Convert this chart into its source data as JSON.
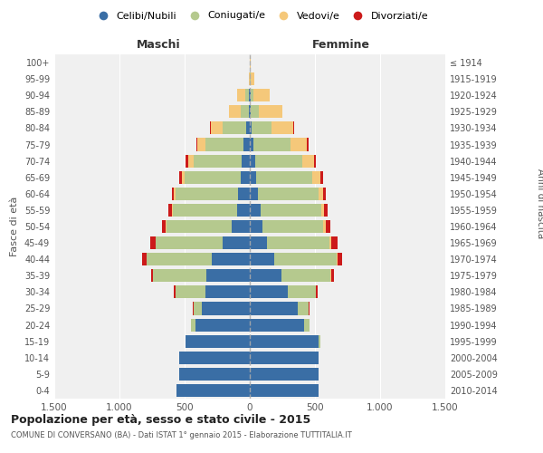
{
  "age_groups": [
    "0-4",
    "5-9",
    "10-14",
    "15-19",
    "20-24",
    "25-29",
    "30-34",
    "35-39",
    "40-44",
    "45-49",
    "50-54",
    "55-59",
    "60-64",
    "65-69",
    "70-74",
    "75-79",
    "80-84",
    "85-89",
    "90-94",
    "95-99",
    "100+"
  ],
  "birth_years": [
    "2010-2014",
    "2005-2009",
    "2000-2004",
    "1995-1999",
    "1990-1994",
    "1985-1989",
    "1980-1984",
    "1975-1979",
    "1970-1974",
    "1965-1969",
    "1960-1964",
    "1955-1959",
    "1950-1954",
    "1945-1949",
    "1940-1944",
    "1935-1939",
    "1930-1934",
    "1925-1929",
    "1920-1924",
    "1915-1919",
    "≤ 1914"
  ],
  "colors": {
    "celibi": "#3a6ea5",
    "coniugati": "#b5c98e",
    "vedovi": "#f5c87a",
    "divorziati": "#cc1a1a"
  },
  "maschi": {
    "celibi": [
      560,
      540,
      540,
      490,
      420,
      370,
      340,
      330,
      290,
      210,
      140,
      100,
      90,
      70,
      60,
      50,
      30,
      10,
      5,
      3,
      2
    ],
    "coniugati": [
      0,
      0,
      0,
      5,
      30,
      60,
      230,
      410,
      500,
      510,
      500,
      490,
      480,
      430,
      370,
      290,
      180,
      60,
      30,
      0,
      0
    ],
    "vedovi": [
      0,
      0,
      0,
      0,
      0,
      0,
      0,
      0,
      5,
      5,
      5,
      5,
      10,
      20,
      40,
      60,
      90,
      90,
      60,
      5,
      0
    ],
    "divorziati": [
      0,
      0,
      0,
      0,
      0,
      5,
      10,
      20,
      30,
      40,
      30,
      30,
      20,
      20,
      20,
      10,
      5,
      0,
      0,
      0,
      0
    ]
  },
  "femmine": {
    "nubili": [
      530,
      530,
      530,
      530,
      420,
      370,
      290,
      240,
      190,
      130,
      100,
      80,
      60,
      50,
      40,
      30,
      15,
      8,
      5,
      3,
      2
    ],
    "coniugate": [
      0,
      0,
      0,
      10,
      40,
      80,
      220,
      380,
      480,
      480,
      460,
      470,
      470,
      430,
      360,
      280,
      150,
      60,
      20,
      5,
      0
    ],
    "vedove": [
      0,
      0,
      0,
      0,
      0,
      0,
      0,
      5,
      5,
      15,
      20,
      20,
      30,
      60,
      90,
      130,
      170,
      180,
      130,
      30,
      5
    ],
    "divorziate": [
      0,
      0,
      0,
      0,
      0,
      5,
      10,
      20,
      30,
      50,
      40,
      30,
      25,
      20,
      15,
      10,
      5,
      5,
      0,
      0,
      0
    ]
  },
  "title": "Popolazione per età, sesso e stato civile - 2015",
  "subtitle": "COMUNE DI CONVERSANO (BA) - Dati ISTAT 1° gennaio 2015 - Elaborazione TUTTITALIA.IT",
  "xlabel_left": "Maschi",
  "xlabel_right": "Femmine",
  "ylabel_left": "Fasce di età",
  "ylabel_right": "Anni di nascita",
  "xlim": 1500,
  "bg_color": "#f0f0f0",
  "grid_color": "#cccccc",
  "legend_labels": [
    "Celibi/Nubili",
    "Coniugati/e",
    "Vedovi/e",
    "Divorziati/e"
  ]
}
